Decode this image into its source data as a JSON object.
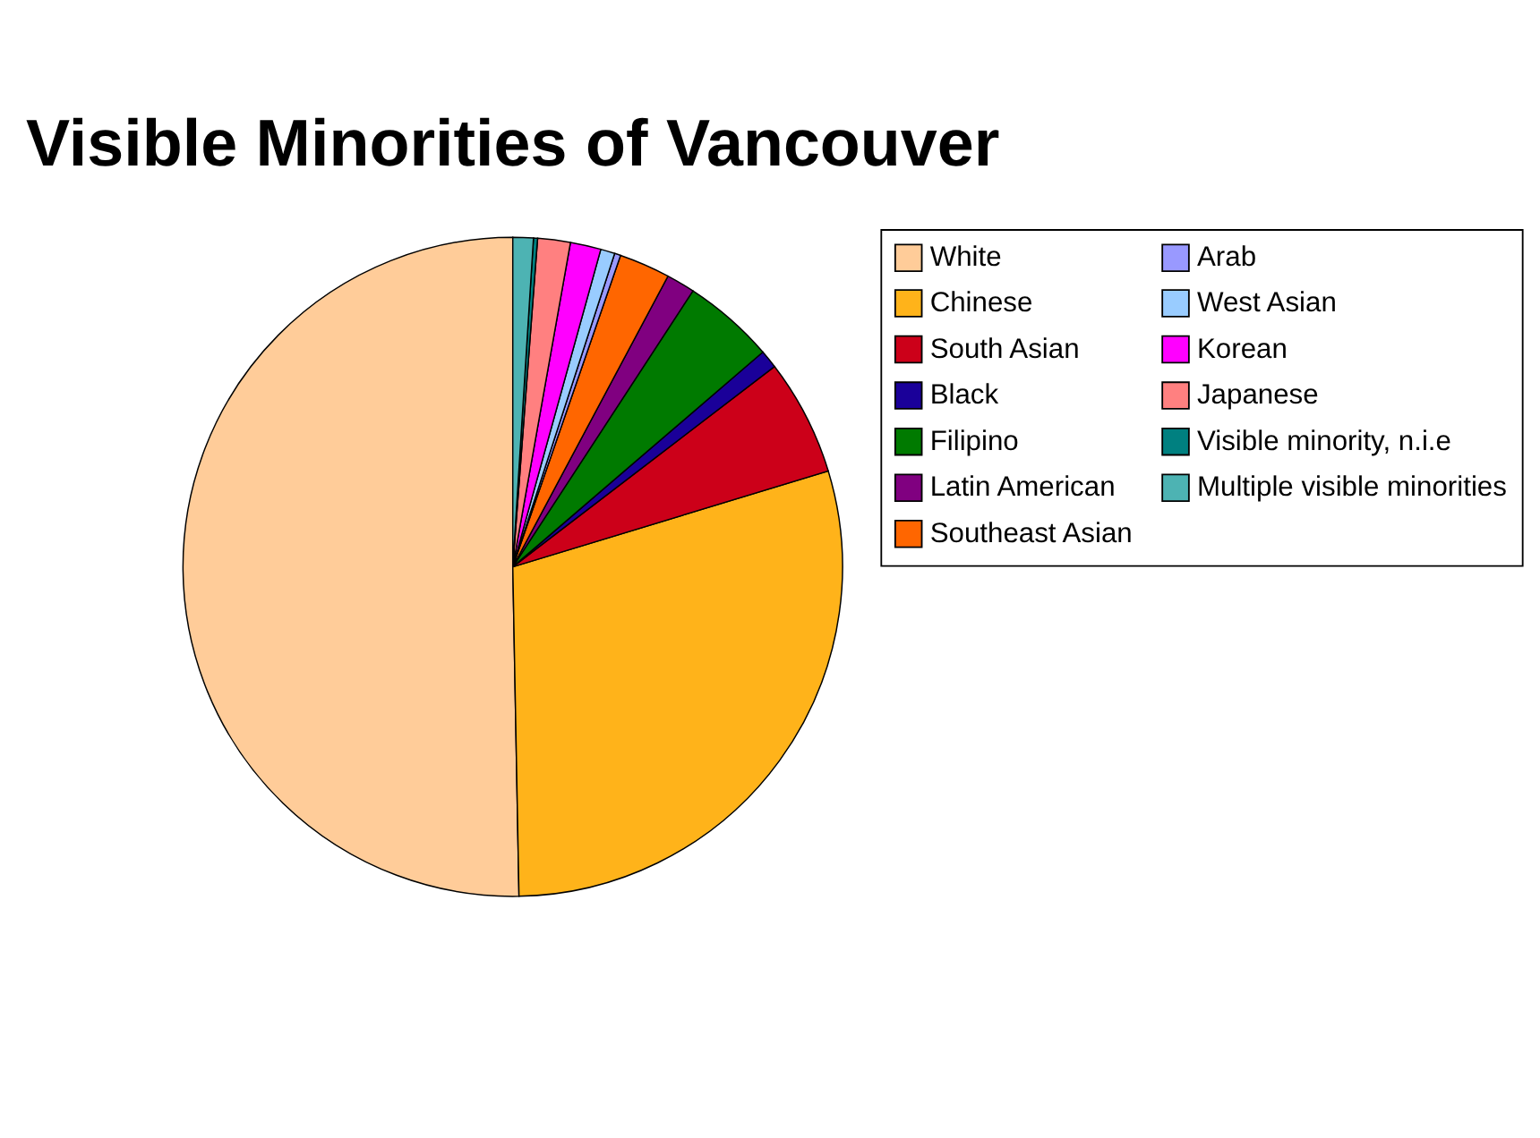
{
  "chart_data": {
    "type": "pie",
    "title": "Visible Minorities of Vancouver",
    "categories": [
      "White",
      "Chinese",
      "South Asian",
      "Black",
      "Filipino",
      "Latin American",
      "Southeast Asian",
      "Arab",
      "West Asian",
      "Korean",
      "Japanese",
      "Visible minority, n.i.e",
      "Multiple visible minorities"
    ],
    "values": [
      50.3,
      29.4,
      5.7,
      0.9,
      4.5,
      1.4,
      2.5,
      0.3,
      0.7,
      1.5,
      1.6,
      0.2,
      1.0
    ],
    "colors": [
      "#ffcc99",
      "#ffb31a",
      "#cc0019",
      "#1a0099",
      "#007a00",
      "#800080",
      "#ff6600",
      "#9999ff",
      "#99ccff",
      "#ff00ff",
      "#ff8080",
      "#008080",
      "#4db3b3"
    ],
    "legend": "right"
  }
}
